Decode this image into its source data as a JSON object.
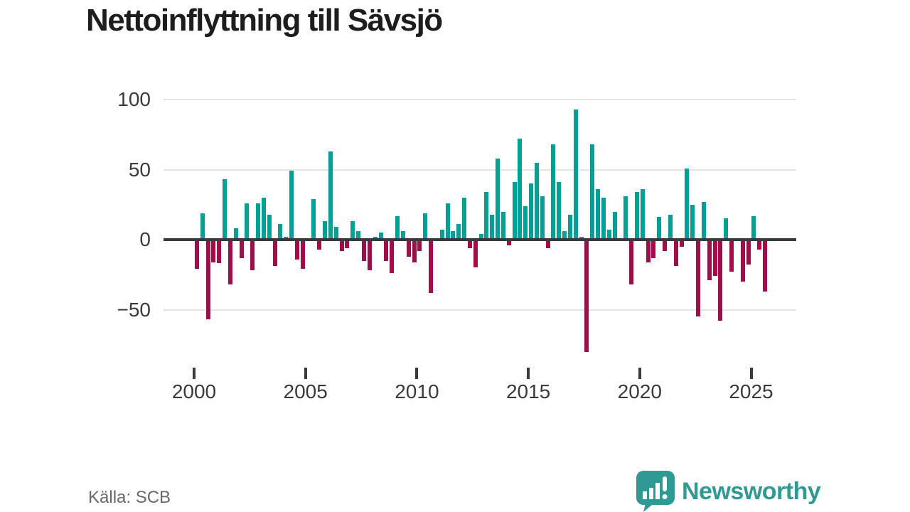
{
  "title": "Nettoinflyttning till Sävsjö",
  "source_note": "Källa: SCB",
  "brand": {
    "name": "Newsworthy"
  },
  "colors": {
    "positive": "#00a096",
    "negative": "#a00d49",
    "axis": "#3a3a3a",
    "grid": "#e4e4e4",
    "tick_label": "#3a3a3a",
    "title": "#1d1d1d",
    "source": "#68686f",
    "brand_teal": "#2f9a93"
  },
  "chart_data": {
    "type": "bar",
    "title": "Nettoinflyttning till Sävsjö",
    "frequency": "quarterly",
    "start_period": "2000-Q1",
    "end_period": "2025-Q3",
    "xlabel": "",
    "ylabel": "",
    "grid": "horizontal",
    "y_ticks": [
      100,
      50,
      0,
      -50
    ],
    "ylim": [
      -85,
      105
    ],
    "x_tick_labels": [
      "2000",
      "2005",
      "2010",
      "2015",
      "2020",
      "2025"
    ],
    "series": [
      {
        "name": "Nettoinflyttning",
        "values": [
          -21,
          19,
          -57,
          -16,
          -17,
          43,
          -32,
          8,
          -13,
          26,
          -22,
          26,
          30,
          18,
          -19,
          11,
          2,
          49,
          -14,
          -21,
          1,
          29,
          -7,
          13,
          63,
          9,
          -8,
          -6,
          13,
          6,
          -15,
          -22,
          2,
          5,
          -15,
          -24,
          17,
          6,
          -12,
          -16,
          -8,
          19,
          -38,
          0,
          7,
          26,
          6,
          11,
          30,
          -6,
          -20,
          4,
          34,
          18,
          58,
          20,
          -4,
          41,
          72,
          24,
          40,
          55,
          31,
          -6,
          68,
          41,
          6,
          18,
          93,
          2,
          -80,
          68,
          36,
          30,
          7,
          20,
          0,
          31,
          -32,
          34,
          36,
          -16,
          -13,
          16,
          -8,
          18,
          -19,
          -5,
          51,
          25,
          -55,
          27,
          -29,
          -26,
          -58,
          15,
          -23,
          1,
          -30,
          -18,
          17,
          -7,
          -37
        ]
      }
    ]
  }
}
